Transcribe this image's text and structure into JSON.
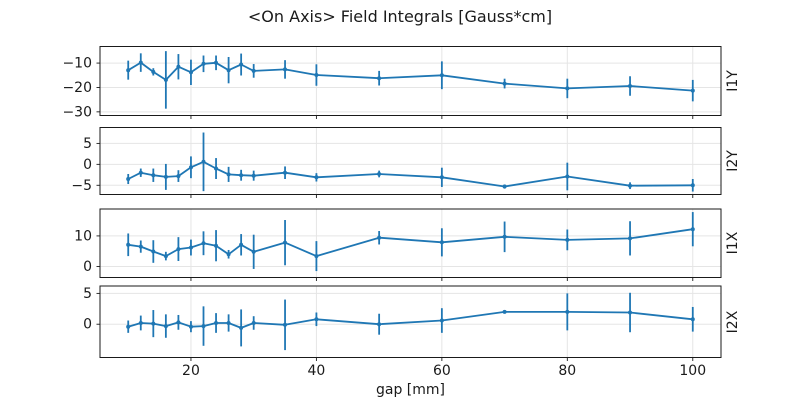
{
  "figure": {
    "background": "#ffffff",
    "line_color": "#1f77b4",
    "grid_color": "#e5e5e5",
    "spine_color": "#1a1a1a",
    "text_color": "#1a1a1a"
  },
  "chart_data": {
    "type": "line",
    "title": "<On Axis> Field Integrals [Gauss*cm]",
    "xlabel": "gap [mm]",
    "grid": true,
    "legend": "none",
    "marker": "point",
    "error_bars": true,
    "x": [
      10,
      12,
      14,
      16,
      18,
      20,
      22,
      24,
      26,
      28,
      30,
      35,
      40,
      50,
      60,
      70,
      80,
      90,
      100
    ],
    "xlim": [
      5.5,
      104.5
    ],
    "xticks": [
      20,
      40,
      60,
      80,
      100
    ],
    "series": [
      {
        "name": "I1Y",
        "values": [
          -12.9,
          -9.8,
          -13.6,
          -16.9,
          -11.5,
          -13.8,
          -10.3,
          -9.9,
          -12.9,
          -10.6,
          -13.2,
          -12.6,
          -14.9,
          -16.2,
          -15.0,
          -18.4,
          -20.4,
          -19.4,
          -21.3
        ],
        "errors": [
          3.9,
          3.8,
          1.5,
          11.8,
          5.2,
          5.2,
          3.4,
          3.0,
          5.4,
          4.5,
          2.8,
          3.8,
          4.4,
          3.0,
          5.7,
          2.0,
          4.0,
          4.0,
          4.4
        ],
        "ylim": [
          -31.5,
          -3.2
        ],
        "yticks": [
          -10,
          -20,
          -30
        ]
      },
      {
        "name": "I2Y",
        "values": [
          -3.5,
          -2.0,
          -2.6,
          -3.0,
          -2.8,
          -0.7,
          0.6,
          -1.0,
          -2.4,
          -2.6,
          -2.7,
          -2.0,
          -3.1,
          -2.3,
          -3.1,
          -5.3,
          -2.9,
          -5.1,
          -5.0
        ],
        "errors": [
          1.2,
          1.0,
          1.6,
          3.1,
          1.4,
          2.6,
          7.0,
          2.5,
          1.8,
          1.3,
          1.2,
          1.5,
          1.0,
          0.8,
          2.3,
          0.5,
          3.3,
          0.8,
          1.5
        ],
        "ylim": [
          -7.2,
          8.8
        ],
        "yticks": [
          5,
          0,
          -5
        ]
      },
      {
        "name": "I1X",
        "values": [
          7.1,
          6.5,
          4.9,
          3.4,
          5.7,
          6.2,
          7.6,
          6.8,
          4.0,
          7.1,
          4.8,
          7.8,
          3.4,
          9.4,
          7.9,
          9.7,
          8.7,
          9.2,
          12.2
        ],
        "errors": [
          3.7,
          2.0,
          3.7,
          1.4,
          3.9,
          2.6,
          3.9,
          5.1,
          1.4,
          3.5,
          5.6,
          7.4,
          4.9,
          2.2,
          4.6,
          5.0,
          3.4,
          5.6,
          5.6
        ],
        "ylim": [
          -3.6,
          18.8
        ],
        "yticks": [
          10,
          0
        ]
      },
      {
        "name": "I2X",
        "values": [
          -0.4,
          0.2,
          0.1,
          -0.3,
          0.3,
          -0.4,
          -0.3,
          0.2,
          0.2,
          -0.6,
          0.2,
          -0.1,
          0.8,
          0.0,
          0.6,
          2.0,
          2.0,
          1.9,
          0.8
        ],
        "errors": [
          1.0,
          1.2,
          2.2,
          1.9,
          1.2,
          0.9,
          3.2,
          1.6,
          1.4,
          3.0,
          1.1,
          4.1,
          1.1,
          1.7,
          2.0,
          0.2,
          3.0,
          3.2,
          2.0
        ],
        "ylim": [
          -5.4,
          6.2
        ],
        "yticks": [
          5,
          0
        ]
      }
    ]
  }
}
